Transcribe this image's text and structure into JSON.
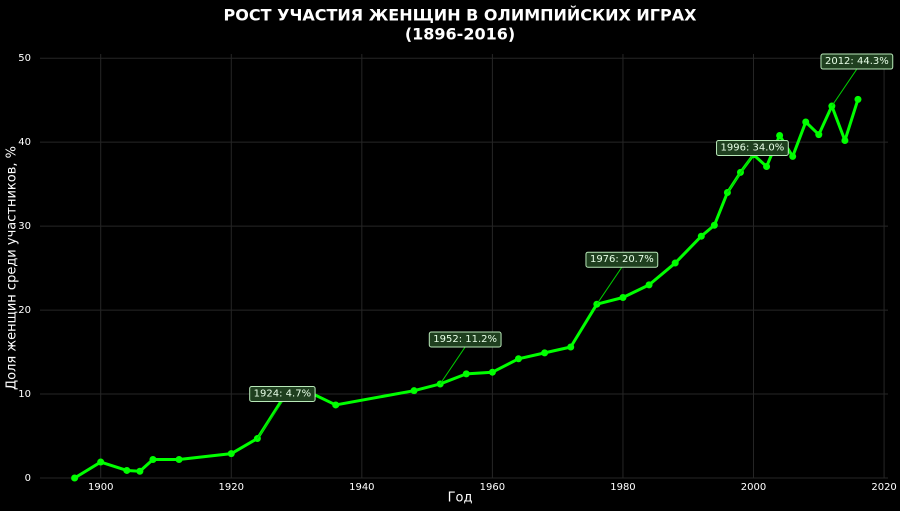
{
  "chart_data": {
    "type": "line",
    "title": "РОСТ УЧАСТИЯ ЖЕНЩИН В ОЛИМПИЙСКИХ ИГРАХ",
    "subtitle": "(1896-2016)",
    "x_label": "Год",
    "y_label": "Доля женщин среди участников, %",
    "x": [
      1896,
      1900,
      1904,
      1906,
      1908,
      1912,
      1920,
      1924,
      1928,
      1932,
      1936,
      1948,
      1952,
      1956,
      1960,
      1964,
      1968,
      1972,
      1976,
      1980,
      1984,
      1988,
      1992,
      1994,
      1996,
      1998,
      2000,
      2002,
      2004,
      2006,
      2008,
      2010,
      2012,
      2014,
      2016
    ],
    "series": [
      {
        "name": "Доля женщин",
        "color": "#00ff00",
        "values": [
          0,
          1.9,
          0.9,
          0.8,
          2.2,
          2.2,
          2.9,
          4.7,
          9.6,
          10.2,
          8.7,
          10.4,
          11.2,
          12.4,
          12.6,
          14.2,
          14.9,
          15.6,
          20.7,
          21.5,
          23.0,
          25.6,
          28.8,
          30.1,
          34.0,
          36.4,
          38.5,
          37.1,
          40.8,
          38.3,
          42.4,
          40.9,
          44.3,
          40.2,
          45.1
        ]
      }
    ],
    "annotations": [
      {
        "text": "1924: 4.7%",
        "x": 1924,
        "y": 4.7
      },
      {
        "text": "1952: 11.2%",
        "x": 1952,
        "y": 11.2
      },
      {
        "text": "1976: 20.7%",
        "x": 1976,
        "y": 20.7
      },
      {
        "text": "1996: 34.0%",
        "x": 1996,
        "y": 34.0
      },
      {
        "text": "2012: 44.3%",
        "x": 2012,
        "y": 44.3
      }
    ],
    "xlim": [
      1890.7,
      2020.6
    ],
    "ylim": [
      0,
      50.5
    ],
    "xticks": [
      1900,
      1920,
      1940,
      1960,
      1980,
      2000,
      2020
    ],
    "yticks": [
      0,
      10,
      20,
      30,
      40,
      50
    ],
    "grid": true
  }
}
